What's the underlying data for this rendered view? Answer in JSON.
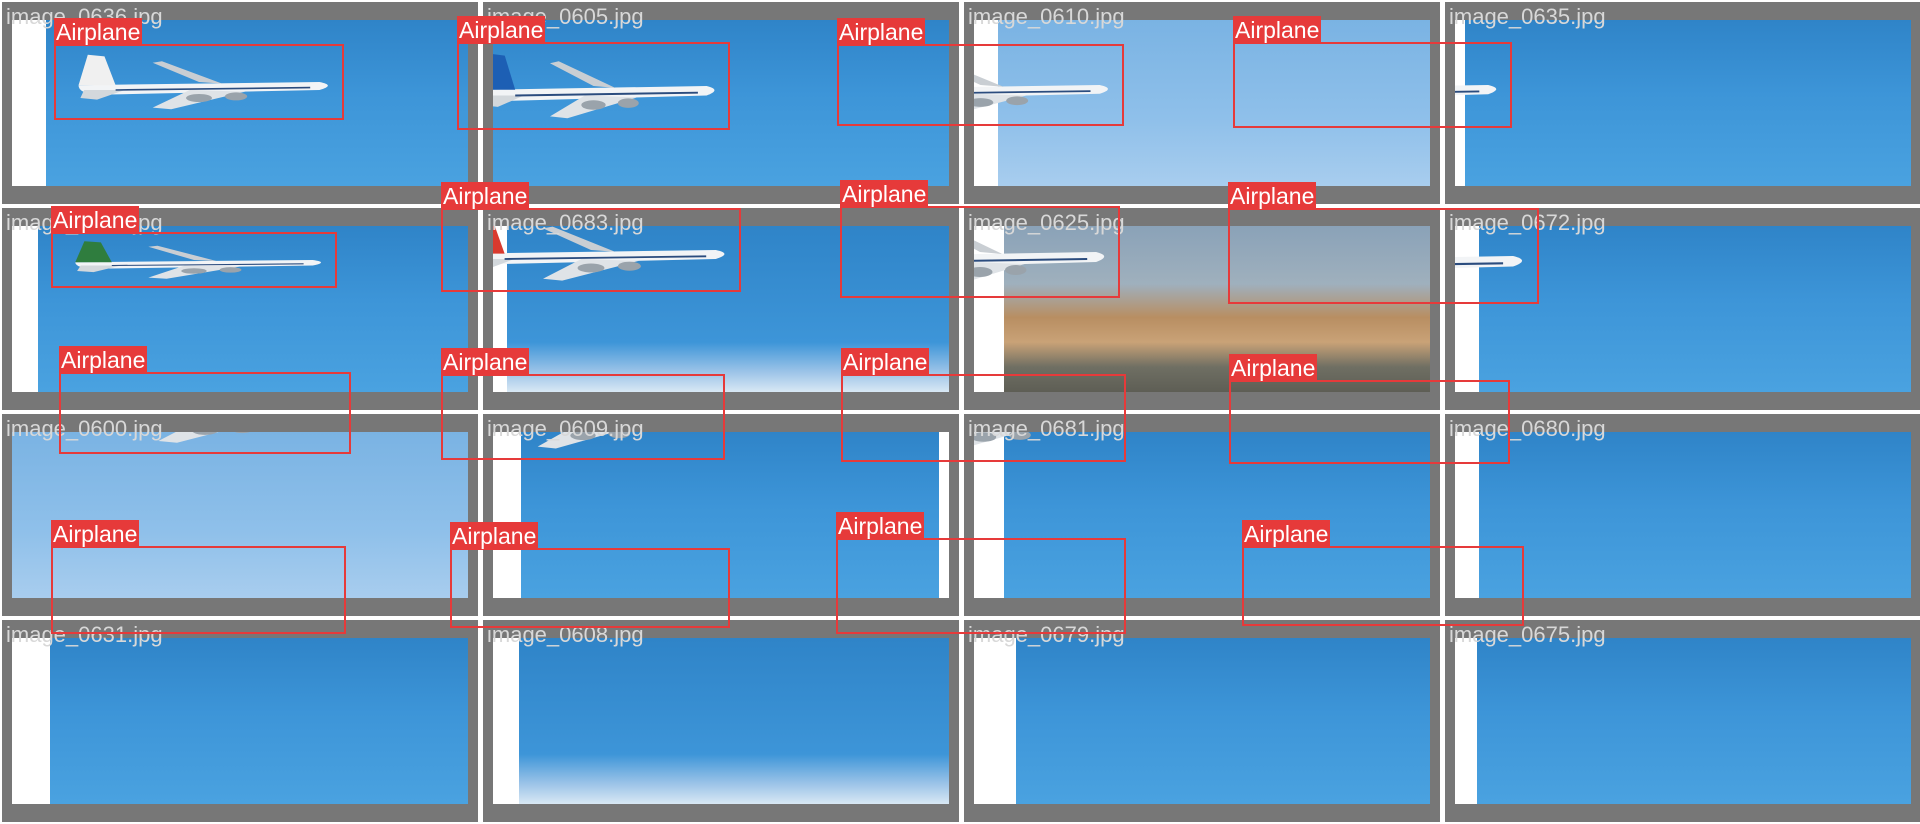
{
  "colors": {
    "box": "#e63a3a",
    "tile_background": "#777777",
    "filename_text": "#d8d8d8",
    "sky": "#3d95d8"
  },
  "tiles": [
    {
      "filename": "image_0636.jpg",
      "label": "Airplane",
      "tail": "#f0f0f0",
      "sky": "sky"
    },
    {
      "filename": "image_0605.jpg",
      "label": "Airplane",
      "tail": "#1d5fb4",
      "sky": "sky"
    },
    {
      "filename": "image_0610.jpg",
      "label": "Airplane",
      "tail": "#cfd8de",
      "sky": "pale"
    },
    {
      "filename": "image_0635.jpg",
      "label": "Airplane",
      "tail": "#d8b23a",
      "sky": "sky"
    },
    {
      "filename": "image_0632.jpg",
      "label": "Airplane",
      "tail": "#2f7d3e",
      "sky": "sky"
    },
    {
      "filename": "image_0683.jpg",
      "label": "Airplane",
      "tail": "#d93a2e",
      "sky": "clouds"
    },
    {
      "filename": "image_0625.jpg",
      "label": "Airplane",
      "tail": "#f0f0f0",
      "sky": "airport"
    },
    {
      "filename": "image_0672.jpg",
      "label": "Airplane",
      "tail": "#e8e8e8",
      "sky": "sky"
    },
    {
      "filename": "image_0600.jpg",
      "label": "Airplane",
      "tail": "#e2a236",
      "sky": "pale"
    },
    {
      "filename": "image_0609.jpg",
      "label": "Airplane",
      "tail": "#f2f2f2",
      "sky": "sky"
    },
    {
      "filename": "image_0681.jpg",
      "label": "Airplane",
      "tail": "#3a8bd4",
      "sky": "sky"
    },
    {
      "filename": "image_0680.jpg",
      "label": "Airplane",
      "tail": "#c9242a",
      "sky": "sky"
    },
    {
      "filename": "image_0631.jpg",
      "label": "Airplane",
      "tail": "#c9242a",
      "sky": "sky"
    },
    {
      "filename": "image_0608.jpg",
      "label": "Airplane",
      "tail": "#1f7a3e",
      "sky": "clouds"
    },
    {
      "filename": "image_0679.jpg",
      "label": "Airplane",
      "tail": "#e6eef2",
      "sky": "sky"
    },
    {
      "filename": "image_0675.jpg",
      "label": "Airplane",
      "tail": "#1d4f8e",
      "sky": "sky"
    }
  ]
}
